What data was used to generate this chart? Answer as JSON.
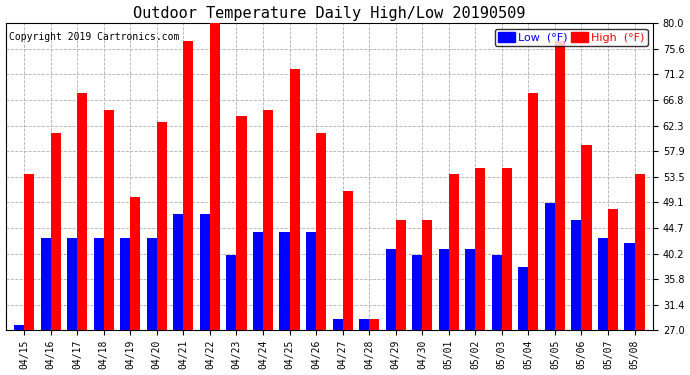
{
  "title": "Outdoor Temperature Daily High/Low 20190509",
  "copyright": "Copyright 2019 Cartronics.com",
  "legend_low": "Low  (°F)",
  "legend_high": "High  (°F)",
  "dates": [
    "04/15",
    "04/16",
    "04/17",
    "04/18",
    "04/19",
    "04/20",
    "04/21",
    "04/22",
    "04/23",
    "04/24",
    "04/25",
    "04/26",
    "04/27",
    "04/28",
    "04/29",
    "04/30",
    "05/01",
    "05/02",
    "05/03",
    "05/04",
    "05/05",
    "05/06",
    "05/07",
    "05/08"
  ],
  "highs": [
    54.0,
    61.0,
    68.0,
    65.0,
    50.0,
    63.0,
    77.0,
    80.0,
    64.0,
    65.0,
    72.0,
    61.0,
    51.0,
    29.0,
    46.0,
    46.0,
    54.0,
    55.0,
    55.0,
    68.0,
    77.0,
    59.0,
    48.0,
    54.0
  ],
  "lows": [
    28.0,
    43.0,
    43.0,
    43.0,
    43.0,
    43.0,
    47.0,
    47.0,
    40.0,
    44.0,
    44.0,
    44.0,
    29.0,
    29.0,
    41.0,
    40.0,
    41.0,
    41.0,
    40.0,
    38.0,
    49.0,
    46.0,
    43.0,
    42.0
  ],
  "ylim_min": 27.0,
  "ylim_max": 80.0,
  "yticks": [
    27.0,
    31.4,
    35.8,
    40.2,
    44.7,
    49.1,
    53.5,
    57.9,
    62.3,
    66.8,
    71.2,
    75.6,
    80.0
  ],
  "bar_color_low": "#0000ff",
  "bar_color_high": "#ff0000",
  "background_color": "#ffffff",
  "plot_bg_color": "#ffffff",
  "grid_color": "#b0b0b0",
  "title_fontsize": 11,
  "copyright_fontsize": 7,
  "tick_fontsize": 7,
  "legend_fontsize": 8,
  "bar_width": 0.38
}
